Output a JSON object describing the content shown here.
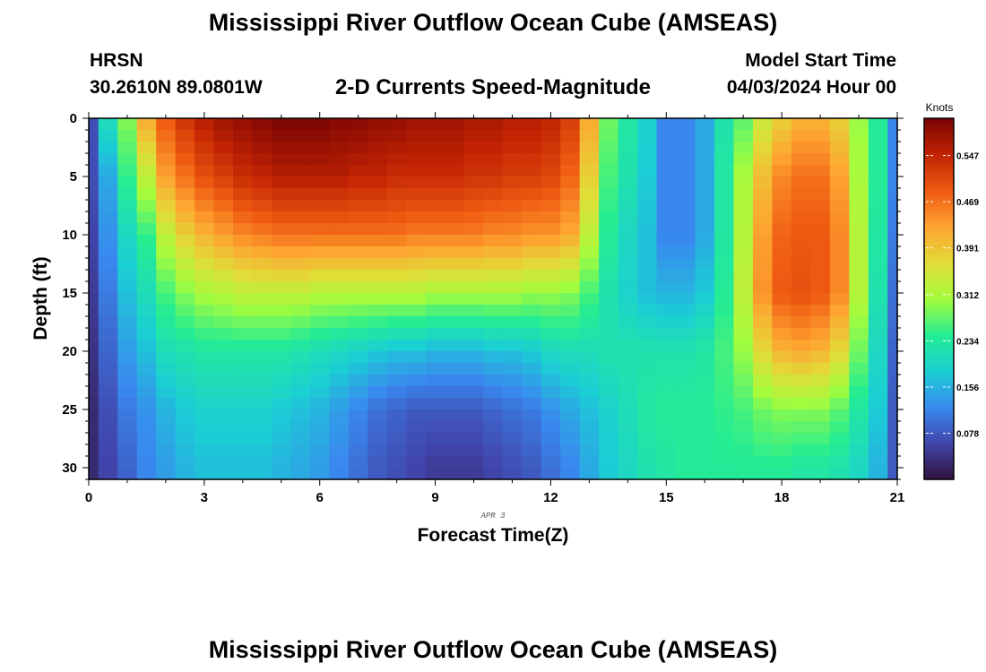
{
  "header": {
    "title": "Mississippi River Outflow Ocean Cube (AMSEAS)",
    "station": "HRSN",
    "coords": "30.2610N  89.0801W",
    "subtitle": "2-D Currents Speed-Magnitude",
    "model_start_label": "Model Start Time",
    "model_start_value": "04/03/2024 Hour 00"
  },
  "footer": {
    "title": "Mississippi River Outflow Ocean Cube (AMSEAS)"
  },
  "chart_data": {
    "type": "heatmap",
    "xlabel": "Forecast Time(Z)",
    "ylabel": "Depth (ft)",
    "date_label": "APR 3",
    "x_range": [
      0,
      21
    ],
    "y_range": [
      0,
      31
    ],
    "y_inverted": true,
    "x_ticks": [
      "0",
      "3",
      "6",
      "9",
      "12",
      "15",
      "18",
      "21"
    ],
    "y_ticks": [
      "0",
      "5",
      "10",
      "15",
      "20",
      "25",
      "30"
    ],
    "colorbar": {
      "label": "Knots",
      "ticks": [
        "0.547",
        "0.469",
        "0.391",
        "0.312",
        "0.234",
        "0.156",
        "0.078"
      ],
      "tick_values": [
        0.547,
        0.469,
        0.391,
        0.312,
        0.234,
        0.156,
        0.078
      ],
      "range": [
        0.0,
        0.61
      ],
      "position": "right"
    },
    "x": [
      0,
      0.5,
      1,
      1.5,
      2,
      2.5,
      3,
      3.5,
      4,
      4.5,
      5,
      5.5,
      6,
      6.5,
      7,
      7.5,
      8,
      8.5,
      9,
      9.5,
      10,
      10.5,
      11,
      11.5,
      12,
      12.5,
      13,
      13.5,
      14,
      14.5,
      15,
      15.5,
      16,
      16.5,
      17,
      17.5,
      18,
      18.5,
      19,
      19.5,
      20,
      20.5,
      21
    ],
    "depths": [
      0,
      5,
      10,
      15,
      20,
      25,
      30
    ],
    "values": [
      [
        0.07,
        0.21,
        0.29,
        0.42,
        0.49,
        0.53,
        0.56,
        0.58,
        0.59,
        0.6,
        0.61,
        0.61,
        0.61,
        0.6,
        0.6,
        0.59,
        0.59,
        0.58,
        0.58,
        0.58,
        0.57,
        0.57,
        0.56,
        0.56,
        0.55,
        0.52,
        0.42,
        0.28,
        0.23,
        0.19,
        0.12,
        0.12,
        0.15,
        0.22,
        0.27,
        0.34,
        0.38,
        0.41,
        0.41,
        0.38,
        0.3,
        0.24,
        0.12
      ],
      [
        0.07,
        0.15,
        0.25,
        0.33,
        0.43,
        0.47,
        0.5,
        0.52,
        0.54,
        0.55,
        0.56,
        0.56,
        0.56,
        0.56,
        0.55,
        0.55,
        0.54,
        0.54,
        0.54,
        0.54,
        0.53,
        0.53,
        0.52,
        0.52,
        0.51,
        0.48,
        0.38,
        0.26,
        0.22,
        0.18,
        0.12,
        0.12,
        0.15,
        0.23,
        0.31,
        0.4,
        0.45,
        0.47,
        0.47,
        0.43,
        0.31,
        0.24,
        0.12
      ],
      [
        0.06,
        0.13,
        0.2,
        0.25,
        0.33,
        0.38,
        0.41,
        0.43,
        0.45,
        0.46,
        0.47,
        0.47,
        0.47,
        0.47,
        0.47,
        0.47,
        0.47,
        0.46,
        0.46,
        0.46,
        0.46,
        0.45,
        0.45,
        0.44,
        0.44,
        0.42,
        0.33,
        0.24,
        0.2,
        0.17,
        0.12,
        0.12,
        0.15,
        0.23,
        0.32,
        0.43,
        0.48,
        0.49,
        0.49,
        0.45,
        0.32,
        0.23,
        0.11
      ],
      [
        0.05,
        0.11,
        0.17,
        0.21,
        0.26,
        0.29,
        0.31,
        0.32,
        0.33,
        0.33,
        0.33,
        0.33,
        0.32,
        0.32,
        0.32,
        0.32,
        0.32,
        0.32,
        0.31,
        0.31,
        0.31,
        0.31,
        0.31,
        0.3,
        0.3,
        0.29,
        0.26,
        0.22,
        0.19,
        0.17,
        0.16,
        0.16,
        0.18,
        0.24,
        0.33,
        0.44,
        0.49,
        0.5,
        0.49,
        0.45,
        0.32,
        0.22,
        0.1
      ],
      [
        0.04,
        0.09,
        0.14,
        0.17,
        0.21,
        0.22,
        0.23,
        0.23,
        0.23,
        0.23,
        0.23,
        0.22,
        0.21,
        0.2,
        0.19,
        0.18,
        0.17,
        0.17,
        0.16,
        0.16,
        0.16,
        0.17,
        0.17,
        0.18,
        0.2,
        0.21,
        0.21,
        0.22,
        0.22,
        0.22,
        0.22,
        0.22,
        0.23,
        0.26,
        0.3,
        0.37,
        0.41,
        0.42,
        0.41,
        0.37,
        0.28,
        0.2,
        0.09
      ],
      [
        0.03,
        0.07,
        0.11,
        0.13,
        0.16,
        0.18,
        0.19,
        0.19,
        0.19,
        0.19,
        0.18,
        0.17,
        0.16,
        0.14,
        0.12,
        0.1,
        0.09,
        0.08,
        0.08,
        0.08,
        0.08,
        0.09,
        0.1,
        0.11,
        0.13,
        0.15,
        0.17,
        0.19,
        0.21,
        0.23,
        0.24,
        0.24,
        0.24,
        0.25,
        0.26,
        0.28,
        0.29,
        0.29,
        0.29,
        0.27,
        0.23,
        0.18,
        0.08
      ],
      [
        0.03,
        0.06,
        0.09,
        0.12,
        0.14,
        0.16,
        0.17,
        0.17,
        0.17,
        0.17,
        0.16,
        0.15,
        0.14,
        0.12,
        0.1,
        0.08,
        0.07,
        0.06,
        0.05,
        0.05,
        0.05,
        0.06,
        0.07,
        0.08,
        0.1,
        0.12,
        0.15,
        0.18,
        0.2,
        0.22,
        0.23,
        0.24,
        0.24,
        0.24,
        0.24,
        0.24,
        0.24,
        0.23,
        0.23,
        0.22,
        0.2,
        0.16,
        0.08
      ]
    ]
  }
}
